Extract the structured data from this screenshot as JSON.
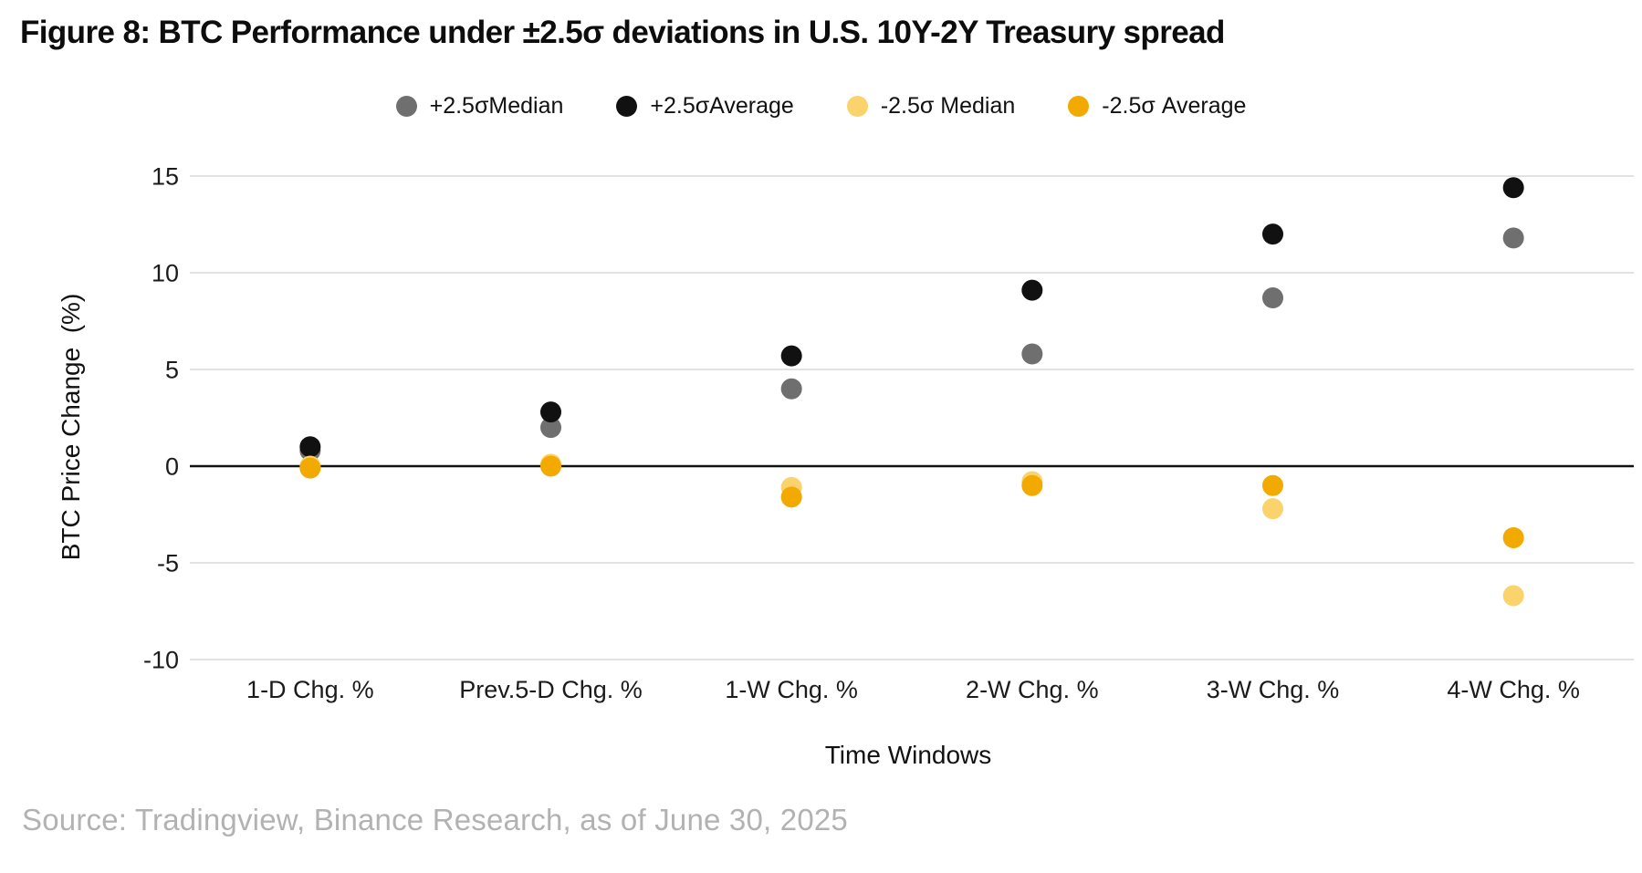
{
  "title": "Figure 8: BTC Performance under ±2.5σ deviations in U.S. 10Y-2Y Treasury spread",
  "source": "Source: Tradingview, Binance Research, as of June 30, 2025",
  "chart_data": {
    "type": "scatter",
    "title": "BTC Performance under ±2.5σ deviations in U.S. 10Y-2Y Treasury spread",
    "xlabel": "Time Windows",
    "ylabel": "BTC Price Change  (%)",
    "categories": [
      "1-D Chg. %",
      "Prev.5-D Chg. %",
      "1-W Chg. %",
      "2-W Chg. %",
      "3-W Chg. %",
      "4-W Chg. %"
    ],
    "ylim": [
      -10,
      15
    ],
    "yticks": [
      15,
      10,
      5,
      0,
      -5,
      -10
    ],
    "grid": "horizontal",
    "legend_position": "top-center",
    "zero_line_color": "#111111",
    "gridline_color": "#d8d8d8",
    "series": [
      {
        "name": "+2.5σMedian",
        "color": "#6f6f6f",
        "values": [
          0.8,
          2.0,
          4.0,
          5.8,
          8.7,
          11.8
        ]
      },
      {
        "name": "+2.5σAverage",
        "color": "#111111",
        "values": [
          1.0,
          2.8,
          5.7,
          9.1,
          12.0,
          14.4
        ]
      },
      {
        "name": "-2.5σ Median",
        "color": "#FBD36D",
        "values": [
          0.0,
          0.1,
          -1.1,
          -0.8,
          -2.2,
          -6.7
        ]
      },
      {
        "name": "-2.5σ Average",
        "color": "#F2A900",
        "values": [
          -0.1,
          0.0,
          -1.6,
          -1.0,
          -1.0,
          -3.7
        ]
      }
    ]
  }
}
